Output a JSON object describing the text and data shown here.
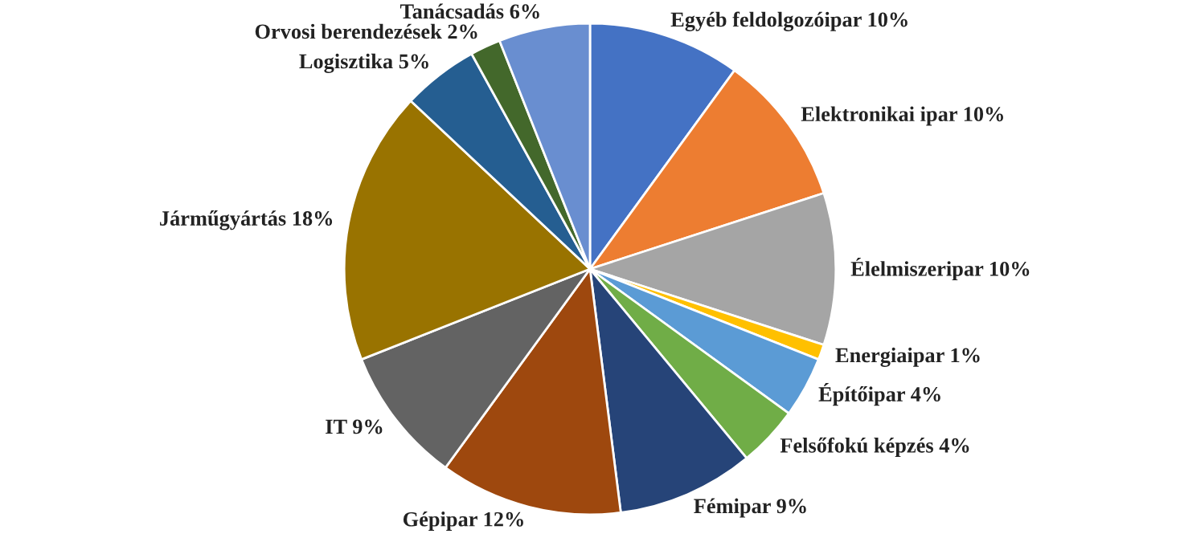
{
  "chart_data": {
    "type": "pie",
    "categories": [
      "Egyéb feldolgozóipar",
      "Elektronikai ipar",
      "Élelmiszeripar",
      "Energiaipar",
      "Építőipar",
      "Felsőfokú képzés",
      "Fémipar",
      "Gépipar",
      "IT",
      "Járműgyártás",
      "Logisztika",
      "Orvosi berendezések",
      "Tanácsadás"
    ],
    "values": [
      10,
      10,
      10,
      1,
      4,
      4,
      9,
      12,
      9,
      18,
      5,
      2,
      6
    ],
    "value_labels": [
      "10%",
      "10%",
      "10%",
      "1%",
      "4%",
      "4%",
      "9%",
      "12%",
      "9%",
      "18%",
      "5%",
      "2%",
      "6%"
    ],
    "colors": [
      "#4472c4",
      "#ed7d31",
      "#a5a5a5",
      "#ffc000",
      "#5b9bd5",
      "#70ad47",
      "#264478",
      "#9e480e",
      "#636363",
      "#997300",
      "#255e91",
      "#43682b",
      "#698ed0"
    ],
    "legend": false
  }
}
